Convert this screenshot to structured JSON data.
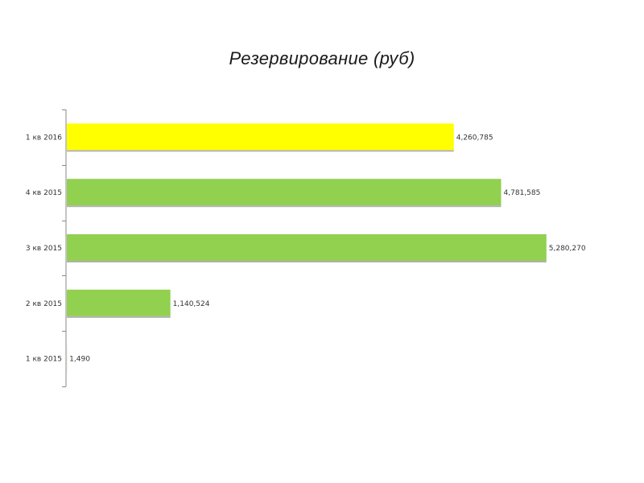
{
  "chart_data": {
    "type": "bar",
    "orientation": "horizontal",
    "title": "Резервирование (руб)",
    "categories": [
      "1 кв 2016",
      "4 кв 2015",
      "3 кв 2015",
      "2 кв 2015",
      "1 кв 2015"
    ],
    "values": [
      4260785,
      4781585,
      5280270,
      1140524,
      1490
    ],
    "value_labels": [
      "4,260,785",
      "4,781,585",
      "5,280,270",
      "1,140,524",
      "1,490"
    ],
    "bar_colors": [
      "#ffff00",
      "#92d050",
      "#92d050",
      "#92d050",
      "#92d050"
    ],
    "xlim": [
      0,
      5300000
    ],
    "grid": false,
    "legend": "none"
  }
}
